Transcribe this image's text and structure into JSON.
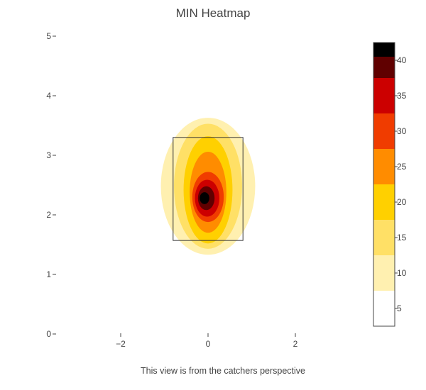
{
  "chart_data": {
    "type": "heatmap",
    "title": "MIN Heatmap",
    "xlabel": "This view is from the catchers perspective",
    "ylabel": "",
    "xlim": [
      -3.2,
      3.2
    ],
    "ylim": [
      0,
      5
    ],
    "x_ticks": [
      -2,
      0,
      2
    ],
    "x_tick_labels": [
      "−2",
      "0",
      "2"
    ],
    "y_ticks": [
      0,
      1,
      2,
      3,
      4,
      5
    ],
    "y_tick_labels": [
      "0",
      "1",
      "2",
      "3",
      "4",
      "5"
    ],
    "grid": false,
    "strike_zone": {
      "x": [
        -0.8,
        0.8
      ],
      "y": [
        1.57,
        3.3
      ]
    },
    "peak": {
      "x": -0.05,
      "y": 2.28,
      "value": 43
    },
    "contour_levels": [
      {
        "level": 5,
        "color": "#fff0b0",
        "center": [
          0.0,
          2.48
        ],
        "rx": 1.08,
        "ry": 1.15
      },
      {
        "level": 10,
        "color": "#ffe066",
        "center": [
          0.0,
          2.48
        ],
        "rx": 0.78,
        "ry": 1.05
      },
      {
        "level": 15,
        "color": "#ffd000",
        "center": [
          0.0,
          2.42
        ],
        "rx": 0.56,
        "ry": 0.9
      },
      {
        "level": 20,
        "color": "#ff8c00",
        "center": [
          0.0,
          2.38
        ],
        "rx": 0.42,
        "ry": 0.68
      },
      {
        "level": 25,
        "color": "#f03c00",
        "center": [
          0.0,
          2.3
        ],
        "rx": 0.36,
        "ry": 0.42
      },
      {
        "level": 30,
        "color": "#cc0000",
        "center": [
          -0.02,
          2.28
        ],
        "rx": 0.28,
        "ry": 0.31
      },
      {
        "level": 35,
        "color": "#600000",
        "center": [
          -0.04,
          2.28
        ],
        "rx": 0.19,
        "ry": 0.2
      },
      {
        "level": 40,
        "color": "#000000",
        "center": [
          -0.08,
          2.28
        ],
        "rx": 0.11,
        "ry": 0.1
      }
    ],
    "colorbar": {
      "range": [
        2.5,
        42.5
      ],
      "ticks": [
        5,
        10,
        15,
        20,
        25,
        30,
        35,
        40
      ],
      "bands": [
        {
          "from": 2.5,
          "to": 7.5,
          "color": "#ffffff"
        },
        {
          "from": 7.5,
          "to": 12.5,
          "color": "#fff0b0"
        },
        {
          "from": 12.5,
          "to": 17.5,
          "color": "#ffe066"
        },
        {
          "from": 17.5,
          "to": 22.5,
          "color": "#ffd000"
        },
        {
          "from": 22.5,
          "to": 27.5,
          "color": "#ff8c00"
        },
        {
          "from": 27.5,
          "to": 32.5,
          "color": "#f03c00"
        },
        {
          "from": 32.5,
          "to": 37.5,
          "color": "#cc0000"
        },
        {
          "from": 37.5,
          "to": 42.5,
          "color": "#600000"
        },
        {
          "from": 40.5,
          "to": 42.5,
          "color": "#000000"
        }
      ]
    }
  }
}
